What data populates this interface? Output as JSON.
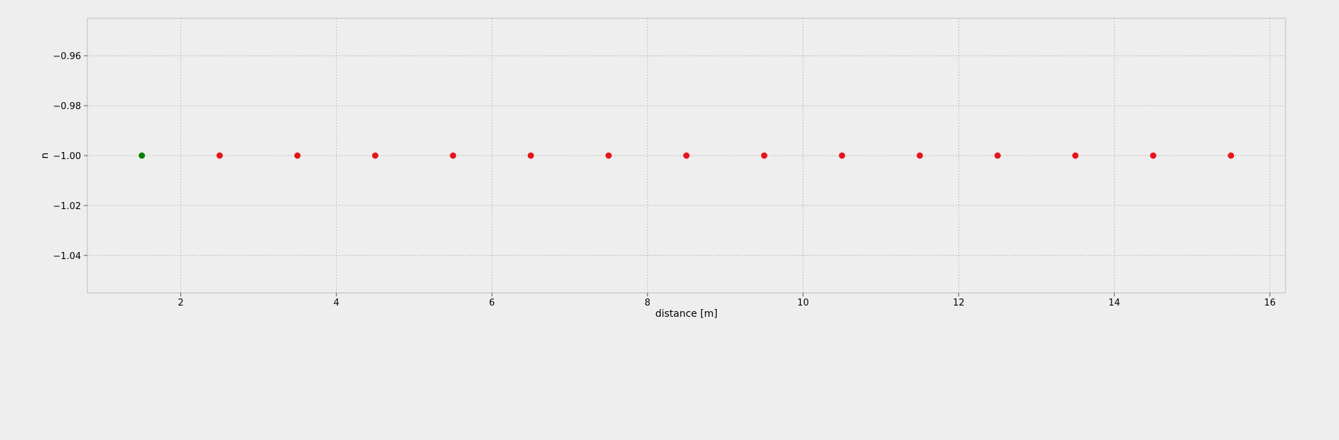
{
  "chart_data": {
    "type": "scatter",
    "xlabel": "distance [m]",
    "ylabel": "n",
    "xlim": [
      0.8,
      16.2
    ],
    "ylim": [
      -1.055,
      -0.945
    ],
    "x_ticks": [
      2,
      4,
      6,
      8,
      10,
      12,
      14,
      16
    ],
    "x_tick_labels": [
      "2",
      "4",
      "6",
      "8",
      "10",
      "12",
      "14",
      "16"
    ],
    "y_ticks": [
      -0.96,
      -0.98,
      -1.0,
      -1.02,
      -1.04
    ],
    "y_tick_labels": [
      "−0.96",
      "−0.98",
      "−1.00",
      "−1.02",
      "−1.04"
    ],
    "grid": true,
    "colors": {
      "background": "#eeeeee",
      "grid": "#b0b0b0",
      "spine": "#bcbcbc",
      "point_green": "#008000",
      "point_red": "#e8141c"
    },
    "points": [
      {
        "x": 1.5,
        "y": -1.0,
        "color": "green"
      },
      {
        "x": 2.5,
        "y": -1.0,
        "color": "red"
      },
      {
        "x": 3.5,
        "y": -1.0,
        "color": "red"
      },
      {
        "x": 4.5,
        "y": -1.0,
        "color": "red"
      },
      {
        "x": 5.5,
        "y": -1.0,
        "color": "red"
      },
      {
        "x": 6.5,
        "y": -1.0,
        "color": "red"
      },
      {
        "x": 7.5,
        "y": -1.0,
        "color": "red"
      },
      {
        "x": 8.5,
        "y": -1.0,
        "color": "red"
      },
      {
        "x": 9.5,
        "y": -1.0,
        "color": "red"
      },
      {
        "x": 10.5,
        "y": -1.0,
        "color": "red"
      },
      {
        "x": 11.5,
        "y": -1.0,
        "color": "red"
      },
      {
        "x": 12.5,
        "y": -1.0,
        "color": "red"
      },
      {
        "x": 13.5,
        "y": -1.0,
        "color": "red"
      },
      {
        "x": 14.5,
        "y": -1.0,
        "color": "red"
      },
      {
        "x": 15.5,
        "y": -1.0,
        "color": "red"
      }
    ]
  }
}
